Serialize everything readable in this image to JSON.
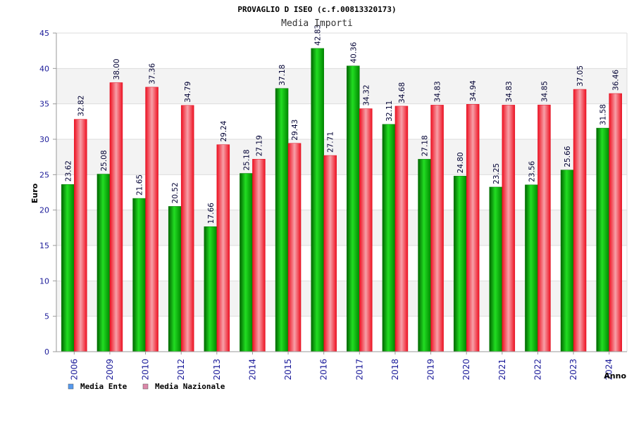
{
  "chart_data": {
    "type": "bar",
    "title": "PROVAGLIO D ISEO (c.f.00813320173)",
    "subtitle": "Media Importi",
    "xlabel": "Anno",
    "ylabel": "Euro",
    "ylim": [
      0,
      45
    ],
    "yticks": [
      0,
      5,
      10,
      15,
      20,
      25,
      30,
      35,
      40,
      45
    ],
    "grid": true,
    "legend_position": "bottom-left",
    "categories": [
      "2006",
      "2009",
      "2010",
      "2012",
      "2013",
      "2014",
      "2015",
      "2016",
      "2017",
      "2018",
      "2019",
      "2020",
      "2021",
      "2022",
      "2023",
      "2024"
    ],
    "series": [
      {
        "name": "Media Ente",
        "color": "#11c011",
        "legend_color": "#5599ee",
        "values": [
          23.62,
          25.08,
          21.65,
          20.52,
          17.66,
          25.18,
          37.18,
          42.83,
          40.36,
          32.11,
          27.18,
          24.8,
          23.25,
          23.56,
          25.66,
          31.58
        ],
        "labels": [
          "23.62",
          "25.08",
          "21.65",
          "20.52",
          "17.66",
          "25.18",
          "37.18",
          "42.83",
          "40.36",
          "32.11",
          "27.18",
          "24.80",
          "23.25",
          "23.56",
          "25.66",
          "31.58"
        ]
      },
      {
        "name": "Media Nazionale",
        "color": "#ee2233",
        "legend_color": "#dd88aa",
        "values": [
          32.82,
          38.0,
          37.36,
          34.79,
          29.24,
          27.19,
          29.43,
          27.71,
          34.32,
          34.68,
          34.83,
          34.94,
          34.83,
          34.85,
          37.05,
          36.46
        ],
        "labels": [
          "32.82",
          "38.00",
          "37.36",
          "34.79",
          "29.24",
          "27.19",
          "29.43",
          "27.71",
          "34.32",
          "34.68",
          "34.83",
          "34.94",
          "34.83",
          "34.85",
          "37.05",
          "36.46"
        ]
      }
    ]
  }
}
